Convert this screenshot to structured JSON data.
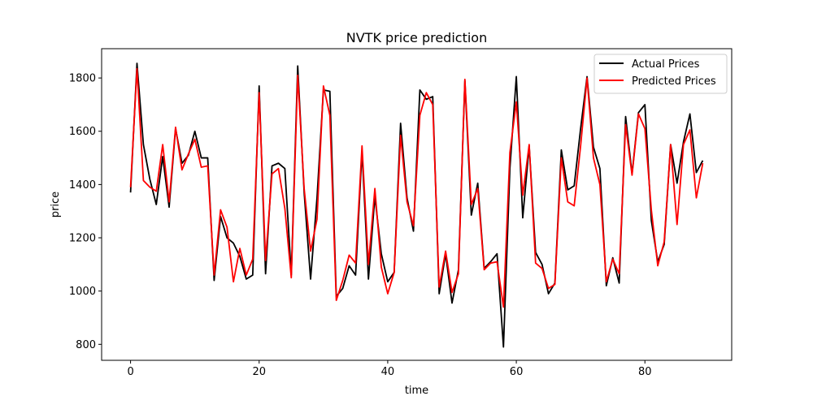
{
  "chart_data": {
    "type": "line",
    "title": "NVTK price prediction",
    "xlabel": "time",
    "ylabel": "price",
    "xlim": [
      -4.5,
      93.5
    ],
    "ylim": [
      740,
      1910
    ],
    "xticks": [
      0,
      20,
      40,
      60,
      80
    ],
    "yticks": [
      800,
      1000,
      1200,
      1400,
      1600,
      1800
    ],
    "grid": false,
    "legend_position": "top-right",
    "series": [
      {
        "name": "Actual Prices",
        "color": "#000000",
        "values": [
          1370,
          1855,
          1550,
          1420,
          1325,
          1505,
          1315,
          1610,
          1480,
          1510,
          1600,
          1500,
          1500,
          1040,
          1280,
          1200,
          1180,
          1130,
          1045,
          1060,
          1770,
          1065,
          1470,
          1480,
          1460,
          1060,
          1845,
          1370,
          1045,
          1350,
          1755,
          1750,
          980,
          1010,
          1095,
          1060,
          1525,
          1045,
          1355,
          1140,
          1035,
          1070,
          1630,
          1350,
          1225,
          1755,
          1720,
          1730,
          990,
          1140,
          955,
          1080,
          1790,
          1285,
          1405,
          1085,
          1110,
          1140,
          790,
          1460,
          1805,
          1275,
          1545,
          1145,
          1100,
          990,
          1030,
          1530,
          1380,
          1395,
          1610,
          1805,
          1540,
          1460,
          1020,
          1125,
          1030,
          1655,
          1440,
          1670,
          1700,
          1265,
          1110,
          1175,
          1550,
          1405,
          1560,
          1665,
          1445,
          1490
        ]
      },
      {
        "name": "Predicted Prices",
        "color": "#ff0000",
        "values": [
          1390,
          1835,
          1415,
          1390,
          1375,
          1550,
          1335,
          1615,
          1455,
          1515,
          1570,
          1465,
          1470,
          1060,
          1305,
          1240,
          1035,
          1160,
          1060,
          1120,
          1745,
          1115,
          1440,
          1460,
          1310,
          1050,
          1810,
          1385,
          1150,
          1270,
          1770,
          1660,
          965,
          1040,
          1135,
          1105,
          1545,
          1100,
          1385,
          1090,
          990,
          1070,
          1585,
          1335,
          1245,
          1660,
          1745,
          1700,
          1015,
          1150,
          995,
          1065,
          1795,
          1325,
          1385,
          1080,
          1105,
          1110,
          940,
          1520,
          1710,
          1360,
          1550,
          1105,
          1085,
          1010,
          1025,
          1500,
          1335,
          1320,
          1545,
          1800,
          1500,
          1400,
          1035,
          1120,
          1065,
          1625,
          1435,
          1665,
          1610,
          1305,
          1095,
          1185,
          1550,
          1250,
          1550,
          1605,
          1350,
          1480
        ]
      }
    ]
  }
}
